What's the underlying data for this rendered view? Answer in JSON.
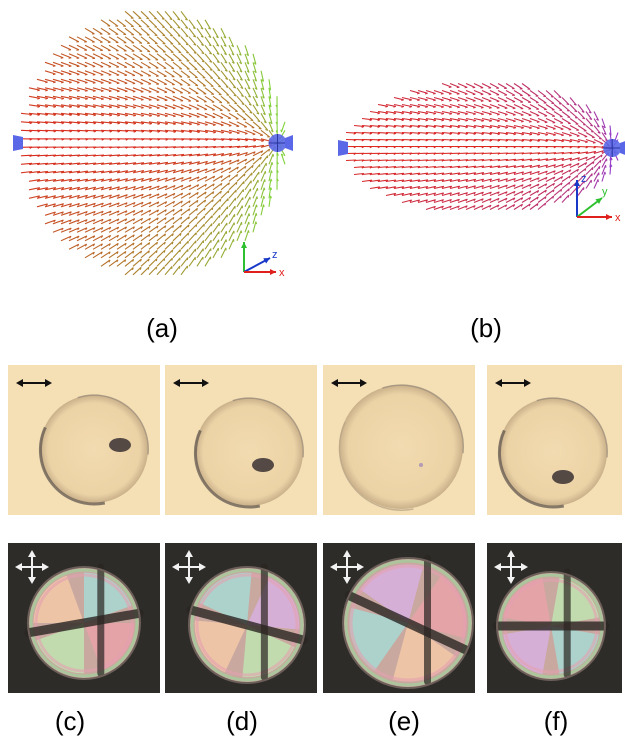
{
  "panels": {
    "a": {
      "label": "(a)",
      "axes": {
        "z": "z",
        "x": "x"
      }
    },
    "b": {
      "label": "(b)",
      "axes": {
        "z": "z",
        "y": "y",
        "x": "x"
      }
    },
    "c": {
      "label": "(c)"
    },
    "d": {
      "label": "(d)"
    },
    "e": {
      "label": "(e)"
    },
    "f": {
      "label": "(f)"
    }
  },
  "colors": {
    "axis_x": "#e0201c",
    "axis_y": "#2ec02e",
    "axis_z": "#1838c8",
    "defect": "#5a68e8",
    "bright_bg": "#f5dfb5",
    "dark_bg": "#2d2c28"
  },
  "icons": {
    "polarizer": "double-arrow-icon",
    "crossed_polarizers": "cross-arrows-icon"
  }
}
